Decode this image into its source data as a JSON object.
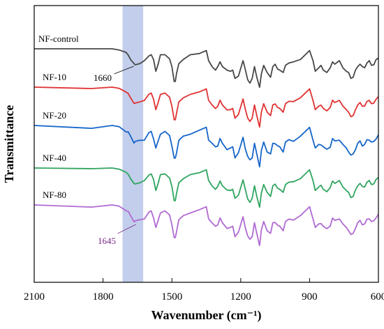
{
  "chart_data": {
    "type": "line",
    "title": "",
    "xlabel": "Wavenumber (cm⁻¹)",
    "ylabel": "Transmittance",
    "x_reversed": true,
    "xlim": [
      2100,
      600
    ],
    "y_ticks_shown": false,
    "x_ticks": [
      "2100",
      "1800",
      "1500",
      "1200",
      "900",
      "600"
    ],
    "x_tick_values": [
      2100,
      1800,
      1500,
      1200,
      900,
      600
    ],
    "grid": false,
    "highlight_band": {
      "x_from": 1715,
      "x_to": 1625,
      "color": "#b7c5e8"
    },
    "annotations": [
      {
        "text": "1660",
        "x": 1660,
        "series": "NF-control",
        "color": "#000000"
      },
      {
        "text": "1645",
        "x": 1645,
        "series": "NF-80",
        "color": "#7a2a8a"
      }
    ],
    "series": [
      {
        "name": "NF-control",
        "color": "#474747"
      },
      {
        "name": "NF-10",
        "color": "#e03131"
      },
      {
        "name": "NF-20",
        "color": "#1565c9"
      },
      {
        "name": "NF-40",
        "color": "#2fa55f"
      },
      {
        "name": "NF-80",
        "color": "#b06ad3"
      }
    ],
    "shape": {
      "x": [
        2100,
        1850,
        1760,
        1730,
        1700,
        1690,
        1680,
        1665,
        1660,
        1640,
        1620,
        1600,
        1590,
        1580,
        1570,
        1560,
        1550,
        1530,
        1510,
        1500,
        1490,
        1485,
        1480,
        1470,
        1450,
        1420,
        1380,
        1350,
        1340,
        1325,
        1310,
        1300,
        1290,
        1280,
        1260,
        1245,
        1235,
        1225,
        1210,
        1190,
        1180,
        1170,
        1160,
        1150,
        1140,
        1130,
        1118,
        1110,
        1100,
        1085,
        1070,
        1060,
        1050,
        1040,
        1030,
        1015,
        1005,
        990,
        970,
        940,
        900,
        885,
        875,
        860,
        850,
        840,
        825,
        810,
        800,
        790,
        770,
        755,
        740,
        730,
        720,
        710,
        700,
        690,
        680,
        670,
        660,
        650,
        640,
        630,
        620,
        610,
        600
      ],
      "y": [
        0.0,
        0.0,
        0.0,
        0.02,
        0.06,
        0.11,
        0.18,
        0.25,
        0.27,
        0.25,
        0.2,
        0.12,
        0.1,
        0.18,
        0.38,
        0.26,
        0.1,
        0.1,
        0.17,
        0.3,
        0.55,
        0.55,
        0.42,
        0.25,
        0.18,
        0.1,
        0.08,
        0.03,
        0.2,
        0.3,
        0.36,
        0.3,
        0.22,
        0.3,
        0.36,
        0.38,
        0.36,
        0.5,
        0.46,
        0.2,
        0.35,
        0.52,
        0.58,
        0.5,
        0.3,
        0.48,
        0.65,
        0.42,
        0.28,
        0.4,
        0.48,
        0.3,
        0.26,
        0.34,
        0.36,
        0.4,
        0.28,
        0.24,
        0.22,
        0.18,
        0.03,
        0.2,
        0.38,
        0.32,
        0.28,
        0.36,
        0.4,
        0.32,
        0.22,
        0.26,
        0.2,
        0.32,
        0.38,
        0.4,
        0.5,
        0.48,
        0.36,
        0.3,
        0.26,
        0.3,
        0.32,
        0.24,
        0.2,
        0.28,
        0.27,
        0.18,
        0.16
      ]
    }
  }
}
